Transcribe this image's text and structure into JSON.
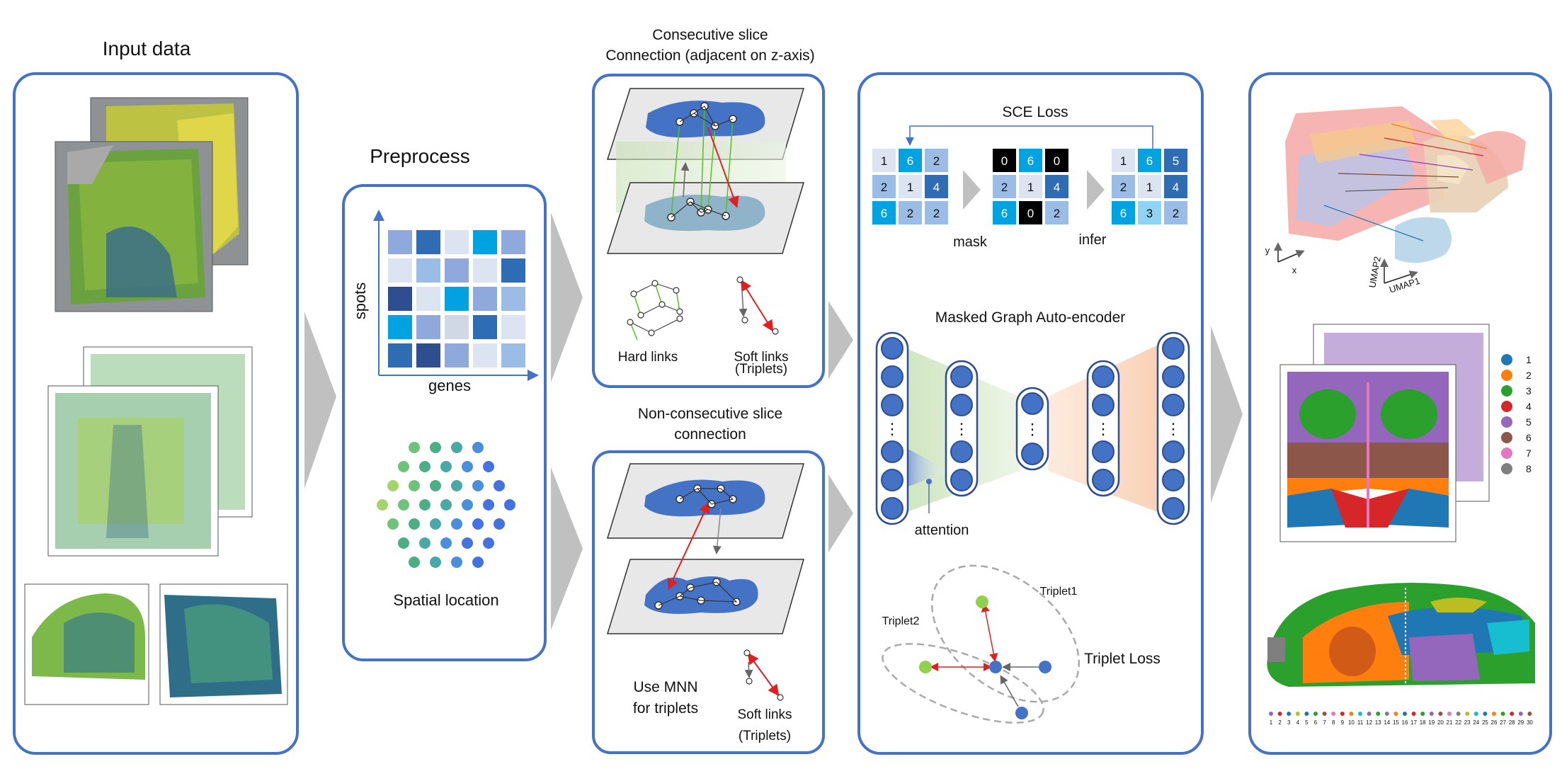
{
  "input": {
    "title": "Input data"
  },
  "preprocess": {
    "title": "Preprocess",
    "y_axis": "spots",
    "x_axis": "genes",
    "spatial_label": "Spatial location"
  },
  "consecutive": {
    "title_line1": "Consecutive slice",
    "title_line2": "Connection (adjacent on z-axis)",
    "hard_links": "Hard links",
    "soft_links_1": "Soft links",
    "soft_links_2": "(Triplets)"
  },
  "nonconsecutive": {
    "title_line1": "Non-consecutive slice",
    "title_line2": "connection",
    "mnn_1": "Use MNN",
    "mnn_2": "for triplets",
    "soft_links_1": "Soft links",
    "soft_links_2": "(Triplets)"
  },
  "model": {
    "sce_loss": "SCE Loss",
    "mask": "mask",
    "infer": "infer",
    "gae_title": "Masked Graph Auto-encoder",
    "attention": "attention",
    "triplet1": "Triplet1",
    "triplet2": "Triplet2",
    "triplet_loss": "Triplet Loss",
    "ellipsis": "⋮",
    "matrix_a": [
      "1",
      "6",
      "2",
      "2",
      "1",
      "4",
      "6",
      "2",
      "2"
    ],
    "matrix_b": [
      "0",
      "6",
      "0",
      "2",
      "1",
      "4",
      "6",
      "0",
      "2"
    ],
    "matrix_c": [
      "1",
      "6",
      "5",
      "2",
      "1",
      "4",
      "6",
      "3",
      "2"
    ]
  },
  "output": {
    "y_label": "y",
    "x_label": "x",
    "umap1": "UMAP1",
    "umap2": "UMAP2",
    "legend": [
      {
        "label": "1",
        "color": "#1f77b4"
      },
      {
        "label": "2",
        "color": "#ff7f0e"
      },
      {
        "label": "3",
        "color": "#2ca02c"
      },
      {
        "label": "4",
        "color": "#d62728"
      },
      {
        "label": "5",
        "color": "#9467bd"
      },
      {
        "label": "6",
        "color": "#8c564b"
      },
      {
        "label": "7",
        "color": "#e377c2"
      },
      {
        "label": "8",
        "color": "#7f7f7f"
      }
    ],
    "bottom_legend": [
      "1",
      "2",
      "3",
      "4",
      "5",
      "6",
      "7",
      "8",
      "9",
      "10",
      "11",
      "12",
      "13",
      "14",
      "15",
      "16",
      "17",
      "18",
      "19",
      "20",
      "21",
      "22",
      "23",
      "24",
      "25",
      "26",
      "27",
      "28",
      "29",
      "30"
    ]
  }
}
